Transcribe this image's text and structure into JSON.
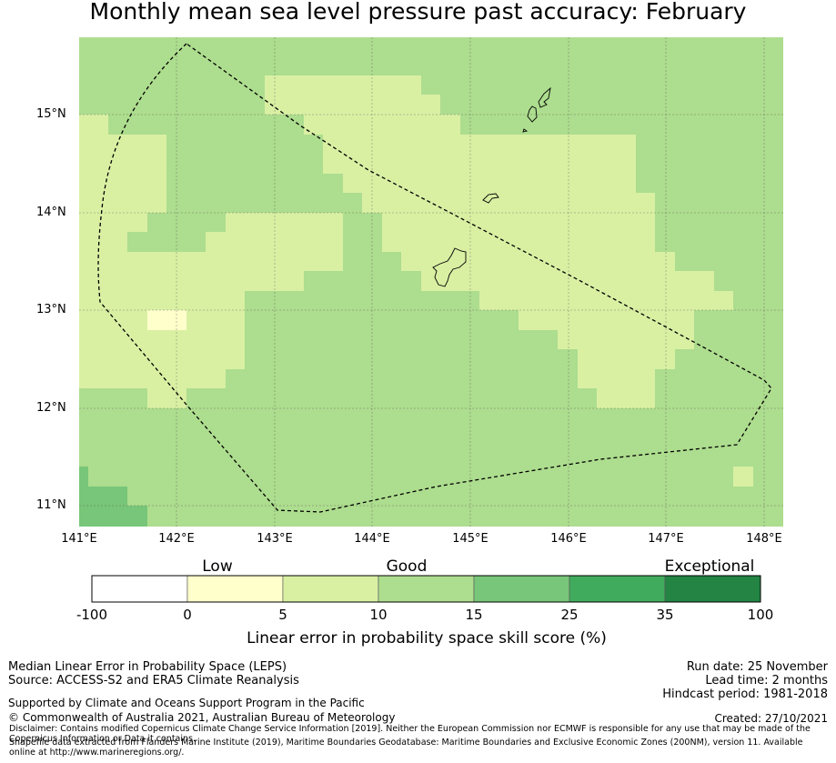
{
  "title": "Monthly mean sea level pressure past accuracy: February",
  "map": {
    "lon_range": [
      141.0,
      148.2
    ],
    "lat_range": [
      10.8,
      15.8
    ],
    "lat_ticks": [
      "15°N",
      "14°N",
      "13°N",
      "12°N",
      "11°N"
    ],
    "lon_ticks": [
      "141°E",
      "142°E",
      "143°E",
      "144°E",
      "145°E",
      "146°E",
      "147°E",
      "148°E"
    ],
    "background_class": "Good",
    "colors": {
      "ocean_good": "#addd8e",
      "ocean_good_light": "#d9f0a3",
      "ocean_low": "#ffffcc",
      "ocean_very_good": "#78c679",
      "eez_boundary": "#000000",
      "grid": "#555555"
    },
    "features": [
      "EEZ boundary (dashed)",
      "Guam",
      "Rota",
      "Tinian",
      "Saipan"
    ]
  },
  "colorbar": {
    "categories": [
      {
        "label": "Low"
      },
      {
        "label": "Good"
      },
      {
        "label": "Exceptional"
      }
    ],
    "ticks": [
      "-100",
      "0",
      "5",
      "10",
      "15",
      "25",
      "35",
      "100"
    ],
    "colors": [
      "#ffffff",
      "#ffffcc",
      "#d9f0a3",
      "#addd8e",
      "#78c679",
      "#41ab5d",
      "#238443"
    ],
    "label": "Linear error in probability space skill score (%)"
  },
  "footer": {
    "left_line1": "Median Linear Error in Probability Space (LEPS)",
    "left_line2": "Source: ACCESS-S2 and ERA5 Climate Reanalysis",
    "right_line1": "Run date: 25 November",
    "right_line2": "Lead time: 2 months",
    "right_line3": "Hindcast period: 1981-2018",
    "supported": "Supported by Climate and Oceans Support Program in the Pacific",
    "copyright": "© Commonwealth of Australia 2021, Australian Bureau of Meteorology",
    "created": "Created: 27/10/2021",
    "disclaimer": "Disclaimer: Contains modified Copernicus Climate Change Service Information [2019]. Neither the European Commission nor ECMWF is responsible for any use that may be made of the Copernicus Information or Data it contains.",
    "shapefile": "Shapefile data extracted from Flanders Marine Institute (2019), Maritime Boundaries Geodatabase: Maritime Boundaries and Exclusive Economic Zones (200NM), version 11. Available online at http://www.marineregions.org/."
  }
}
